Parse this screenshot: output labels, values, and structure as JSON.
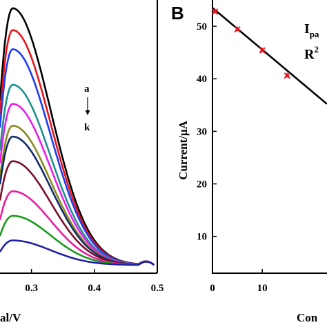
{
  "chart_data": [
    {
      "type": "line",
      "title": "",
      "xlabel": "al/V",
      "ylabel": "",
      "xlim": [
        0.25,
        0.5
      ],
      "ylim": [
        0,
        1
      ],
      "x_ticks": [
        "0.3",
        "0.4",
        "0.5"
      ],
      "annotation": {
        "top": "a",
        "bottom": "k"
      },
      "series": [
        {
          "color": "#000000",
          "peak": 0.97,
          "base": 0.03
        },
        {
          "color": "#e8141b",
          "peak": 0.89,
          "base": 0.03
        },
        {
          "color": "#1f3cf0",
          "peak": 0.82,
          "base": 0.03
        },
        {
          "color": "#1f8f8f",
          "peak": 0.69,
          "base": 0.03
        },
        {
          "color": "#e81ee8",
          "peak": 0.62,
          "base": 0.03
        },
        {
          "color": "#8a8a1e",
          "peak": 0.54,
          "base": 0.03
        },
        {
          "color": "#102a6b",
          "peak": 0.5,
          "base": 0.03
        },
        {
          "color": "#7a0f2a",
          "peak": 0.41,
          "base": 0.03
        },
        {
          "color": "#e81ea0",
          "peak": 0.3,
          "base": 0.03
        },
        {
          "color": "#1a9a1a",
          "peak": 0.21,
          "base": 0.03
        },
        {
          "color": "#1f1fa8",
          "peak": 0.12,
          "base": 0.03
        }
      ]
    },
    {
      "type": "scatter",
      "panel_label": "B",
      "title": "",
      "xlabel": "Con",
      "ylabel": "Current/μA",
      "xlim": [
        0,
        23
      ],
      "ylim": [
        3,
        55
      ],
      "y_ticks": [
        10,
        20,
        30,
        40,
        50
      ],
      "x_ticks": [
        0,
        10
      ],
      "points": [
        {
          "x": 0.5,
          "y": 52.8
        },
        {
          "x": 5,
          "y": 49.4
        },
        {
          "x": 10,
          "y": 45.4
        },
        {
          "x": 15,
          "y": 40.6
        }
      ],
      "fit": {
        "x": [
          0,
          23
        ],
        "y": [
          53.5,
          35.2
        ]
      },
      "equation_line1": "I",
      "equation_line1_sub": "pa",
      "equation_line2": "R",
      "equation_line2_sup": "2"
    }
  ]
}
